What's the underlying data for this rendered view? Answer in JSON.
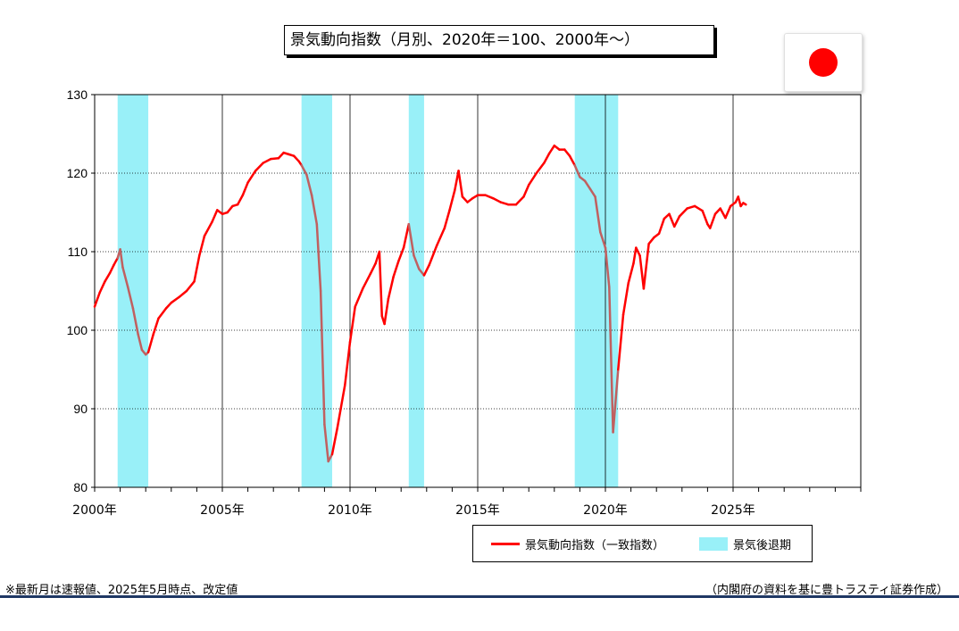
{
  "header": {
    "title": "景気動向指数（月別、2020年＝100、2000年～）"
  },
  "flag": {
    "icon": "japan-flag-icon",
    "color": "#ff0000"
  },
  "legend": {
    "line_label": "景気動向指数（一致指数）",
    "area_label": "景気後退期"
  },
  "footer": {
    "note_left": "※最新月は速報値、2025年5月時点、改定値",
    "note_right": "（内閣府の資料を基に豊トラスティ証券作成）",
    "rule_color": "#1f3864"
  },
  "colors": {
    "line": "#ff0000",
    "line_in_recession": "#c06060",
    "recession": "#99f0f8",
    "grid": "#000000"
  },
  "chart_data": {
    "type": "line",
    "title": "景気動向指数（月別、2020年＝100、2000年～）",
    "xlabel": "",
    "ylabel": "",
    "xlim": [
      2000,
      2030
    ],
    "ylim": [
      80,
      130
    ],
    "yticks": [
      80,
      90,
      100,
      110,
      120,
      130
    ],
    "xticks": [
      {
        "x": 2000,
        "label": "2000年"
      },
      {
        "x": 2005,
        "label": "2005年"
      },
      {
        "x": 2010,
        "label": "2010年"
      },
      {
        "x": 2015,
        "label": "2015年"
      },
      {
        "x": 2020,
        "label": "2020年"
      },
      {
        "x": 2025,
        "label": "2025年"
      }
    ],
    "grid": true,
    "recession_periods": [
      [
        2000.9,
        2002.1
      ],
      [
        2008.1,
        2009.3
      ],
      [
        2012.3,
        2012.9
      ],
      [
        2018.8,
        2020.5
      ]
    ],
    "series": [
      {
        "name": "景気動向指数（一致指数）",
        "points": [
          [
            2000.0,
            103.0
          ],
          [
            2000.2,
            104.8
          ],
          [
            2000.4,
            106.2
          ],
          [
            2000.6,
            107.3
          ],
          [
            2000.75,
            108.3
          ],
          [
            2000.9,
            109.2
          ],
          [
            2001.0,
            110.3
          ],
          [
            2001.1,
            108.0
          ],
          [
            2001.3,
            105.5
          ],
          [
            2001.5,
            102.8
          ],
          [
            2001.7,
            99.5
          ],
          [
            2001.85,
            97.5
          ],
          [
            2002.0,
            96.9
          ],
          [
            2002.1,
            97.2
          ],
          [
            2002.3,
            99.5
          ],
          [
            2002.5,
            101.5
          ],
          [
            2002.8,
            102.8
          ],
          [
            2003.0,
            103.5
          ],
          [
            2003.3,
            104.2
          ],
          [
            2003.6,
            105.0
          ],
          [
            2003.9,
            106.2
          ],
          [
            2004.1,
            109.5
          ],
          [
            2004.3,
            112.0
          ],
          [
            2004.6,
            113.8
          ],
          [
            2004.8,
            115.3
          ],
          [
            2005.0,
            114.8
          ],
          [
            2005.2,
            115.0
          ],
          [
            2005.4,
            115.8
          ],
          [
            2005.6,
            116.0
          ],
          [
            2005.8,
            117.2
          ],
          [
            2006.0,
            118.8
          ],
          [
            2006.3,
            120.3
          ],
          [
            2006.6,
            121.3
          ],
          [
            2006.9,
            121.8
          ],
          [
            2007.2,
            121.9
          ],
          [
            2007.4,
            122.6
          ],
          [
            2007.6,
            122.4
          ],
          [
            2007.8,
            122.2
          ],
          [
            2008.0,
            121.5
          ],
          [
            2008.1,
            121.0
          ],
          [
            2008.3,
            119.8
          ],
          [
            2008.5,
            117.2
          ],
          [
            2008.7,
            113.5
          ],
          [
            2008.85,
            105.0
          ],
          [
            2009.0,
            88.0
          ],
          [
            2009.15,
            83.3
          ],
          [
            2009.3,
            84.2
          ],
          [
            2009.5,
            87.5
          ],
          [
            2009.8,
            93.0
          ],
          [
            2010.0,
            98.5
          ],
          [
            2010.2,
            103.0
          ],
          [
            2010.5,
            105.3
          ],
          [
            2010.8,
            107.2
          ],
          [
            2011.0,
            108.5
          ],
          [
            2011.15,
            110.0
          ],
          [
            2011.25,
            101.8
          ],
          [
            2011.35,
            100.8
          ],
          [
            2011.5,
            104.0
          ],
          [
            2011.7,
            106.8
          ],
          [
            2011.9,
            108.8
          ],
          [
            2012.1,
            110.5
          ],
          [
            2012.3,
            113.5
          ],
          [
            2012.5,
            109.5
          ],
          [
            2012.7,
            107.8
          ],
          [
            2012.9,
            107.0
          ],
          [
            2013.1,
            108.3
          ],
          [
            2013.4,
            110.8
          ],
          [
            2013.7,
            113.0
          ],
          [
            2013.9,
            115.3
          ],
          [
            2014.1,
            117.8
          ],
          [
            2014.25,
            120.3
          ],
          [
            2014.4,
            117.0
          ],
          [
            2014.6,
            116.3
          ],
          [
            2014.8,
            116.8
          ],
          [
            2015.0,
            117.2
          ],
          [
            2015.3,
            117.2
          ],
          [
            2015.6,
            116.8
          ],
          [
            2015.9,
            116.3
          ],
          [
            2016.2,
            116.0
          ],
          [
            2016.5,
            116.0
          ],
          [
            2016.8,
            117.0
          ],
          [
            2017.0,
            118.5
          ],
          [
            2017.3,
            120.0
          ],
          [
            2017.6,
            121.3
          ],
          [
            2017.8,
            122.5
          ],
          [
            2018.0,
            123.5
          ],
          [
            2018.2,
            123.0
          ],
          [
            2018.4,
            123.0
          ],
          [
            2018.6,
            122.2
          ],
          [
            2018.8,
            121.0
          ],
          [
            2019.0,
            119.5
          ],
          [
            2019.2,
            119.0
          ],
          [
            2019.4,
            118.0
          ],
          [
            2019.6,
            117.0
          ],
          [
            2019.8,
            112.5
          ],
          [
            2020.0,
            110.5
          ],
          [
            2020.15,
            105.5
          ],
          [
            2020.3,
            87.0
          ],
          [
            2020.5,
            95.0
          ],
          [
            2020.7,
            102.0
          ],
          [
            2020.9,
            106.0
          ],
          [
            2021.1,
            108.5
          ],
          [
            2021.2,
            110.5
          ],
          [
            2021.35,
            109.5
          ],
          [
            2021.5,
            105.3
          ],
          [
            2021.7,
            111.0
          ],
          [
            2021.9,
            111.8
          ],
          [
            2022.1,
            112.3
          ],
          [
            2022.3,
            114.2
          ],
          [
            2022.5,
            114.8
          ],
          [
            2022.7,
            113.2
          ],
          [
            2022.9,
            114.5
          ],
          [
            2023.2,
            115.5
          ],
          [
            2023.5,
            115.8
          ],
          [
            2023.8,
            115.2
          ],
          [
            2024.0,
            113.5
          ],
          [
            2024.1,
            113.0
          ],
          [
            2024.3,
            114.8
          ],
          [
            2024.5,
            115.5
          ],
          [
            2024.7,
            114.3
          ],
          [
            2024.9,
            115.8
          ],
          [
            2025.1,
            116.3
          ],
          [
            2025.2,
            117.0
          ],
          [
            2025.3,
            115.8
          ],
          [
            2025.4,
            116.2
          ],
          [
            2025.5,
            116.0
          ]
        ]
      }
    ]
  }
}
